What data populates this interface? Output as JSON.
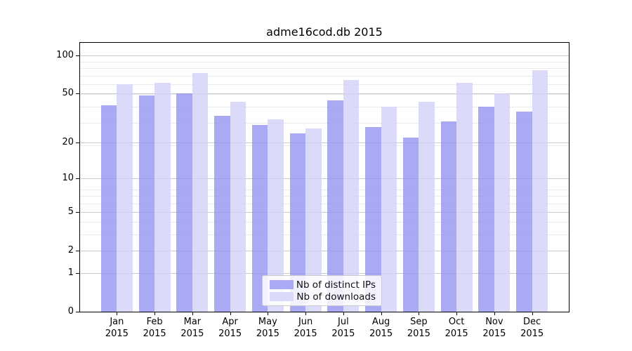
{
  "chart_data": {
    "type": "bar",
    "title": "adme16cod.db 2015",
    "categories": [
      "Jan 2015",
      "Feb 2015",
      "Mar 2015",
      "Apr 2015",
      "May 2015",
      "Jun 2015",
      "Jul 2015",
      "Aug 2015",
      "Sep 2015",
      "Oct 2015",
      "Nov 2015",
      "Dec 2015"
    ],
    "series": [
      {
        "name": "Nb of distinct IPs",
        "color": "#a9a9f4",
        "fill": "rgba(147,147,241,0.8)",
        "values": [
          40,
          48,
          50,
          33,
          28,
          24,
          44,
          27,
          22,
          30,
          39,
          36
        ]
      },
      {
        "name": "Nb of downloads",
        "color": "#dbdbf9",
        "fill": "rgba(210,210,248,0.8)",
        "values": [
          59,
          61,
          73,
          43,
          31,
          26,
          64,
          39,
          43,
          61,
          50,
          77
        ]
      }
    ],
    "y_axis": {
      "scale": "log10(1+x)",
      "ticks": [
        0,
        1,
        2,
        5,
        10,
        20,
        50,
        100
      ],
      "max": 126
    },
    "x_axis": {
      "ticks_per_category": true
    },
    "legend": {
      "position": "lower center",
      "entries": [
        "Nb of distinct IPs",
        "Nb of downloads"
      ]
    },
    "grid": true
  },
  "colors": {
    "background": "#ffffff",
    "axis": "#000000",
    "text": "#000000",
    "major_grid": "#c9c9c9",
    "minor_grid": "#ebebeb",
    "legend_border": "#cccccc"
  }
}
